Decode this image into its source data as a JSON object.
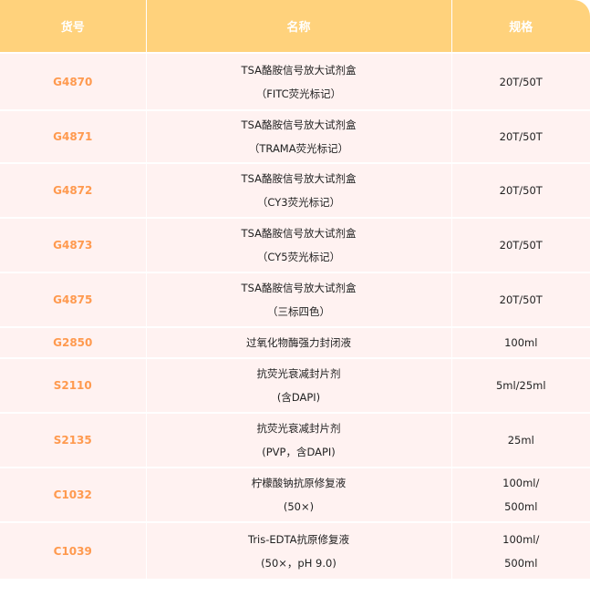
{
  "header": {
    "code": "货号",
    "name": "名称",
    "spec": "规格"
  },
  "colors": {
    "header_bg": "#FFD27C",
    "row_bg": "#FFF2F1",
    "code_text": "#FF9A4F"
  },
  "rows": [
    {
      "code": "G4870",
      "name": [
        "TSA酪胺信号放大试剂盒",
        "（FITC荧光标记）"
      ],
      "spec": [
        "20T/50T"
      ]
    },
    {
      "code": "G4871",
      "name": [
        "TSA酪胺信号放大试剂盒",
        "（TRAMA荧光标记）"
      ],
      "spec": [
        "20T/50T"
      ]
    },
    {
      "code": "G4872",
      "name": [
        "TSA酪胺信号放大试剂盒",
        "（CY3荧光标记）"
      ],
      "spec": [
        "20T/50T"
      ]
    },
    {
      "code": "G4873",
      "name": [
        "TSA酪胺信号放大试剂盒",
        "（CY5荧光标记）"
      ],
      "spec": [
        "20T/50T"
      ]
    },
    {
      "code": "G4875",
      "name": [
        "TSA酪胺信号放大试剂盒",
        "（三标四色）"
      ],
      "spec": [
        "20T/50T"
      ]
    },
    {
      "code": "G2850",
      "name": [
        "过氧化物酶强力封闭液"
      ],
      "spec": [
        "100ml"
      ]
    },
    {
      "code": "S2110",
      "name": [
        "抗荧光衰减封片剂",
        "(含DAPI)"
      ],
      "spec": [
        "5ml/25ml"
      ]
    },
    {
      "code": "S2135",
      "name": [
        "抗荧光衰减封片剂",
        "(PVP，含DAPI)"
      ],
      "spec": [
        "25ml"
      ]
    },
    {
      "code": "C1032",
      "name": [
        "柠檬酸钠抗原修复液",
        "(50×)"
      ],
      "spec": [
        "100ml/",
        "500ml"
      ]
    },
    {
      "code": "C1039",
      "name": [
        "Tris-EDTA抗原修复液",
        "(50×，pH 9.0)"
      ],
      "spec": [
        "100ml/",
        "500ml"
      ]
    }
  ]
}
